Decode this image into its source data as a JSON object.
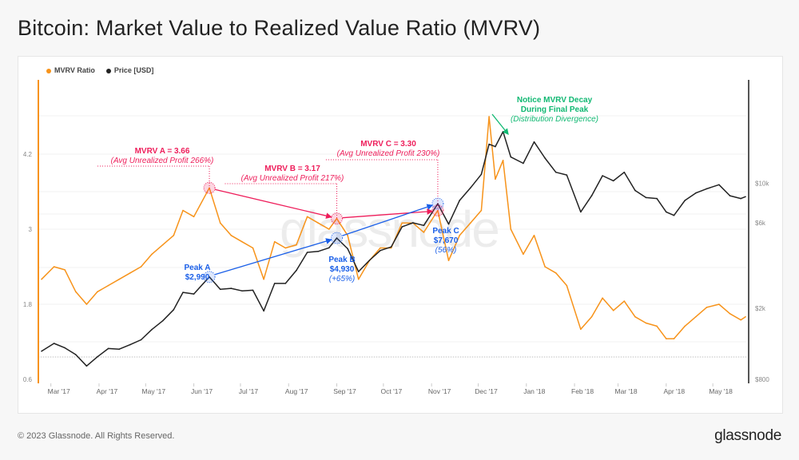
{
  "title": "Bitcoin: Market Value to Realized Value Ratio (MVRV)",
  "footer": "© 2023 Glassnode. All Rights Reserved.",
  "logo": "glassnode",
  "watermark": "glassnode",
  "chart_data": {
    "type": "line",
    "title": "Bitcoin: Market Value to Realized Value Ratio (MVRV)",
    "legend_position": "top-left",
    "grid": true,
    "x_range": [
      "2017-02-23",
      "2018-05-22"
    ],
    "x_ticks": [
      "Mar '17",
      "Apr '17",
      "May '17",
      "Jun '17",
      "Jul '17",
      "Aug '17",
      "Sep '17",
      "Oct '17",
      "Nov '17",
      "Dec '17",
      "Jan '18",
      "Feb '18",
      "Mar '18",
      "Apr '18",
      "May '18"
    ],
    "x_tick_dates": [
      "2017-03-01",
      "2017-04-01",
      "2017-05-01",
      "2017-06-01",
      "2017-07-01",
      "2017-08-01",
      "2017-09-01",
      "2017-10-01",
      "2017-11-01",
      "2017-12-01",
      "2018-01-01",
      "2018-02-01",
      "2018-03-01",
      "2018-04-01",
      "2018-05-01"
    ],
    "y_left": {
      "ticks": [
        "0.6",
        "1.8",
        "3",
        "4.2"
      ],
      "tick_values": [
        0.6,
        1.8,
        3,
        4.2
      ],
      "scale": "linear",
      "color": "#f7931a"
    },
    "y_right": {
      "ticks": [
        "$800",
        "$2k",
        "$6k",
        "$10k"
      ],
      "tick_values": [
        800,
        2000,
        6000,
        10000
      ],
      "scale": "log",
      "color": "#555555"
    },
    "dates": [
      "2017-02-23",
      "2017-03-03",
      "2017-03-10",
      "2017-03-17",
      "2017-03-24",
      "2017-03-31",
      "2017-04-07",
      "2017-04-14",
      "2017-04-21",
      "2017-04-28",
      "2017-05-05",
      "2017-05-12",
      "2017-05-19",
      "2017-05-25",
      "2017-06-01",
      "2017-06-11",
      "2017-06-18",
      "2017-06-25",
      "2017-07-02",
      "2017-07-09",
      "2017-07-16",
      "2017-07-23",
      "2017-07-30",
      "2017-08-06",
      "2017-08-13",
      "2017-08-20",
      "2017-08-27",
      "2017-09-01",
      "2017-09-08",
      "2017-09-15",
      "2017-09-22",
      "2017-09-29",
      "2017-10-06",
      "2017-10-13",
      "2017-10-20",
      "2017-10-27",
      "2017-11-05",
      "2017-11-12",
      "2017-11-19",
      "2017-11-26",
      "2017-12-03",
      "2017-12-08",
      "2017-12-12",
      "2017-12-17",
      "2017-12-22",
      "2017-12-30",
      "2018-01-06",
      "2018-01-13",
      "2018-01-20",
      "2018-01-27",
      "2018-02-05",
      "2018-02-12",
      "2018-02-19",
      "2018-02-26",
      "2018-03-05",
      "2018-03-12",
      "2018-03-19",
      "2018-03-26",
      "2018-04-01",
      "2018-04-06",
      "2018-04-13",
      "2018-04-20",
      "2018-04-27",
      "2018-05-05",
      "2018-05-12",
      "2018-05-19",
      "2018-05-22"
    ],
    "series": [
      {
        "name": "MVRV Ratio",
        "axis": "left",
        "color": "#f7931a",
        "values": [
          2.2,
          2.4,
          2.35,
          2.0,
          1.8,
          2.0,
          2.1,
          2.2,
          2.3,
          2.4,
          2.6,
          2.75,
          2.9,
          3.3,
          3.2,
          3.66,
          3.1,
          2.9,
          2.8,
          2.7,
          2.2,
          2.8,
          2.7,
          2.75,
          3.2,
          3.1,
          3.0,
          3.17,
          2.9,
          2.2,
          2.5,
          2.7,
          2.7,
          3.1,
          3.1,
          2.95,
          3.3,
          2.5,
          2.9,
          3.1,
          3.3,
          4.8,
          3.8,
          4.1,
          3.0,
          2.6,
          2.9,
          2.4,
          2.3,
          2.1,
          1.4,
          1.6,
          1.9,
          1.7,
          1.85,
          1.6,
          1.5,
          1.45,
          1.25,
          1.25,
          1.45,
          1.6,
          1.75,
          1.8,
          1.65,
          1.55,
          1.6
        ]
      },
      {
        "name": "Price [USD]",
        "axis": "right",
        "color": "#222222",
        "values": [
          1150,
          1270,
          1200,
          1100,
          950,
          1070,
          1190,
          1180,
          1250,
          1330,
          1520,
          1700,
          1960,
          2450,
          2400,
          2990,
          2550,
          2580,
          2500,
          2520,
          1930,
          2750,
          2750,
          3250,
          4100,
          4150,
          4350,
          4930,
          4300,
          3200,
          3700,
          4200,
          4400,
          5700,
          6000,
          5800,
          7670,
          5900,
          8000,
          9400,
          11200,
          16500,
          16000,
          19400,
          14000,
          12900,
          17000,
          13800,
          11500,
          11100,
          6900,
          8500,
          11000,
          10300,
          11500,
          9100,
          8300,
          8200,
          6900,
          6600,
          8000,
          8800,
          9300,
          9800,
          8500,
          8200,
          8400
        ]
      }
    ],
    "annotations": {
      "mvrv_a": {
        "title": "MVRV A = 3.66",
        "sub": "(Avg Unrealized Profit 266%)",
        "date": "2017-06-11",
        "value": 3.66
      },
      "mvrv_b": {
        "title": "MVRV B = 3.17",
        "sub": "(Avg Unrealized Profit 217%)",
        "date": "2017-09-01",
        "value": 3.17
      },
      "mvrv_c": {
        "title": "MVRV C = 3.30",
        "sub": "(Avg Unrealized Profit 230%)",
        "date": "2017-11-05",
        "value": 3.3
      },
      "peak_a": {
        "title": "Peak A",
        "price": "$2,990",
        "date": "2017-06-11",
        "value": 2990
      },
      "peak_b": {
        "title": "Peak B",
        "price": "$4,930",
        "change": "(+65%)",
        "date": "2017-09-01",
        "value": 4930
      },
      "peak_c": {
        "title": "Peak C",
        "price": "$7,670",
        "change": "(56%)",
        "date": "2017-11-05",
        "value": 7670
      },
      "decay": {
        "line1": "Notice MVRV Decay",
        "line2": "During Final Peak",
        "sub": "(Distribution Divergence)"
      }
    }
  }
}
